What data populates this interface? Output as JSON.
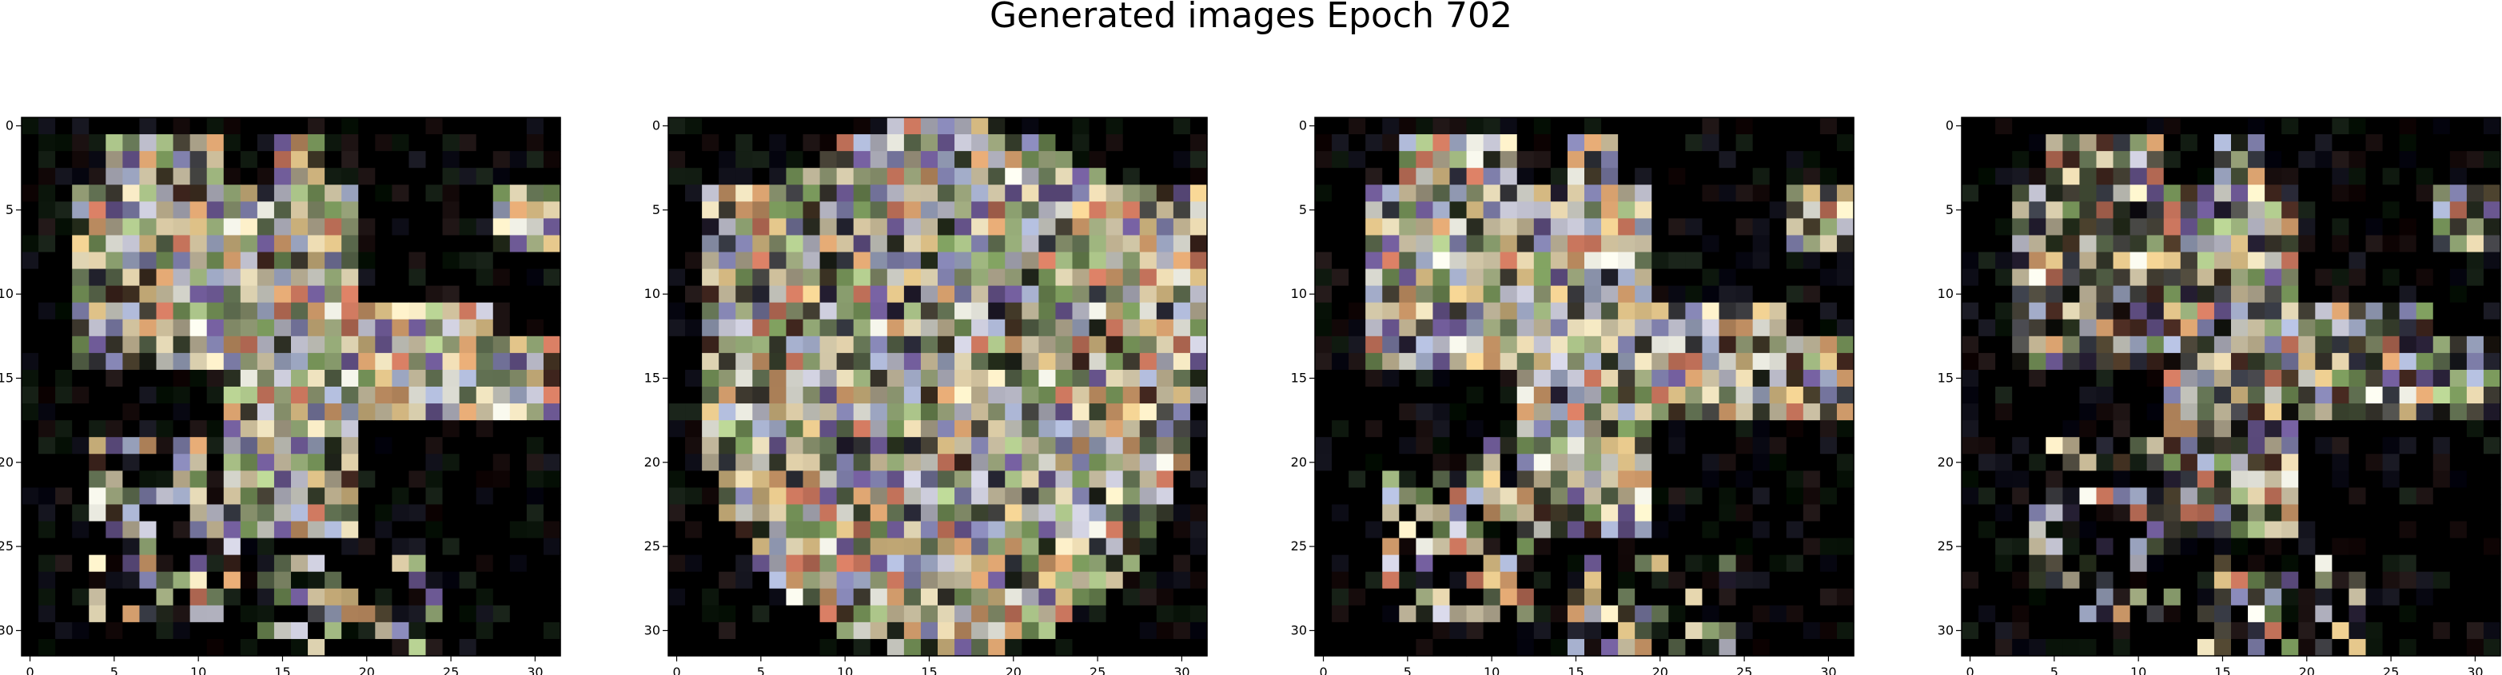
{
  "suptitle": "Generated images Epoch 702",
  "chart_data": [
    {
      "type": "heatmap",
      "subtype": "rgb-image",
      "xlim": [
        -0.5,
        31.5
      ],
      "ylim": [
        31.5,
        -0.5
      ],
      "xticks": [
        0,
        5,
        10,
        15,
        20,
        25,
        30
      ],
      "yticks": [
        0,
        5,
        10,
        15,
        20,
        25,
        30
      ],
      "shape": "blob"
    },
    {
      "type": "heatmap",
      "subtype": "rgb-image",
      "xlim": [
        -0.5,
        31.5
      ],
      "ylim": [
        31.5,
        -0.5
      ],
      "xticks": [
        0,
        5,
        10,
        15,
        20,
        25,
        30
      ],
      "yticks": [
        0,
        5,
        10,
        15,
        20,
        25,
        30
      ],
      "shape": "cloud"
    },
    {
      "type": "heatmap",
      "subtype": "rgb-image",
      "xlim": [
        -0.5,
        31.5
      ],
      "ylim": [
        31.5,
        -0.5
      ],
      "xticks": [
        0,
        5,
        10,
        15,
        20,
        25,
        30
      ],
      "yticks": [
        0,
        5,
        10,
        15,
        20,
        25,
        30
      ],
      "shape": "blob"
    },
    {
      "type": "heatmap",
      "subtype": "rgb-image",
      "xlim": [
        -0.5,
        31.5
      ],
      "ylim": [
        31.5,
        -0.5
      ],
      "xticks": [
        0,
        5,
        10,
        15,
        20,
        25,
        30
      ],
      "yticks": [
        0,
        5,
        10,
        15,
        20,
        25,
        30
      ],
      "shape": "blob-faint"
    }
  ]
}
